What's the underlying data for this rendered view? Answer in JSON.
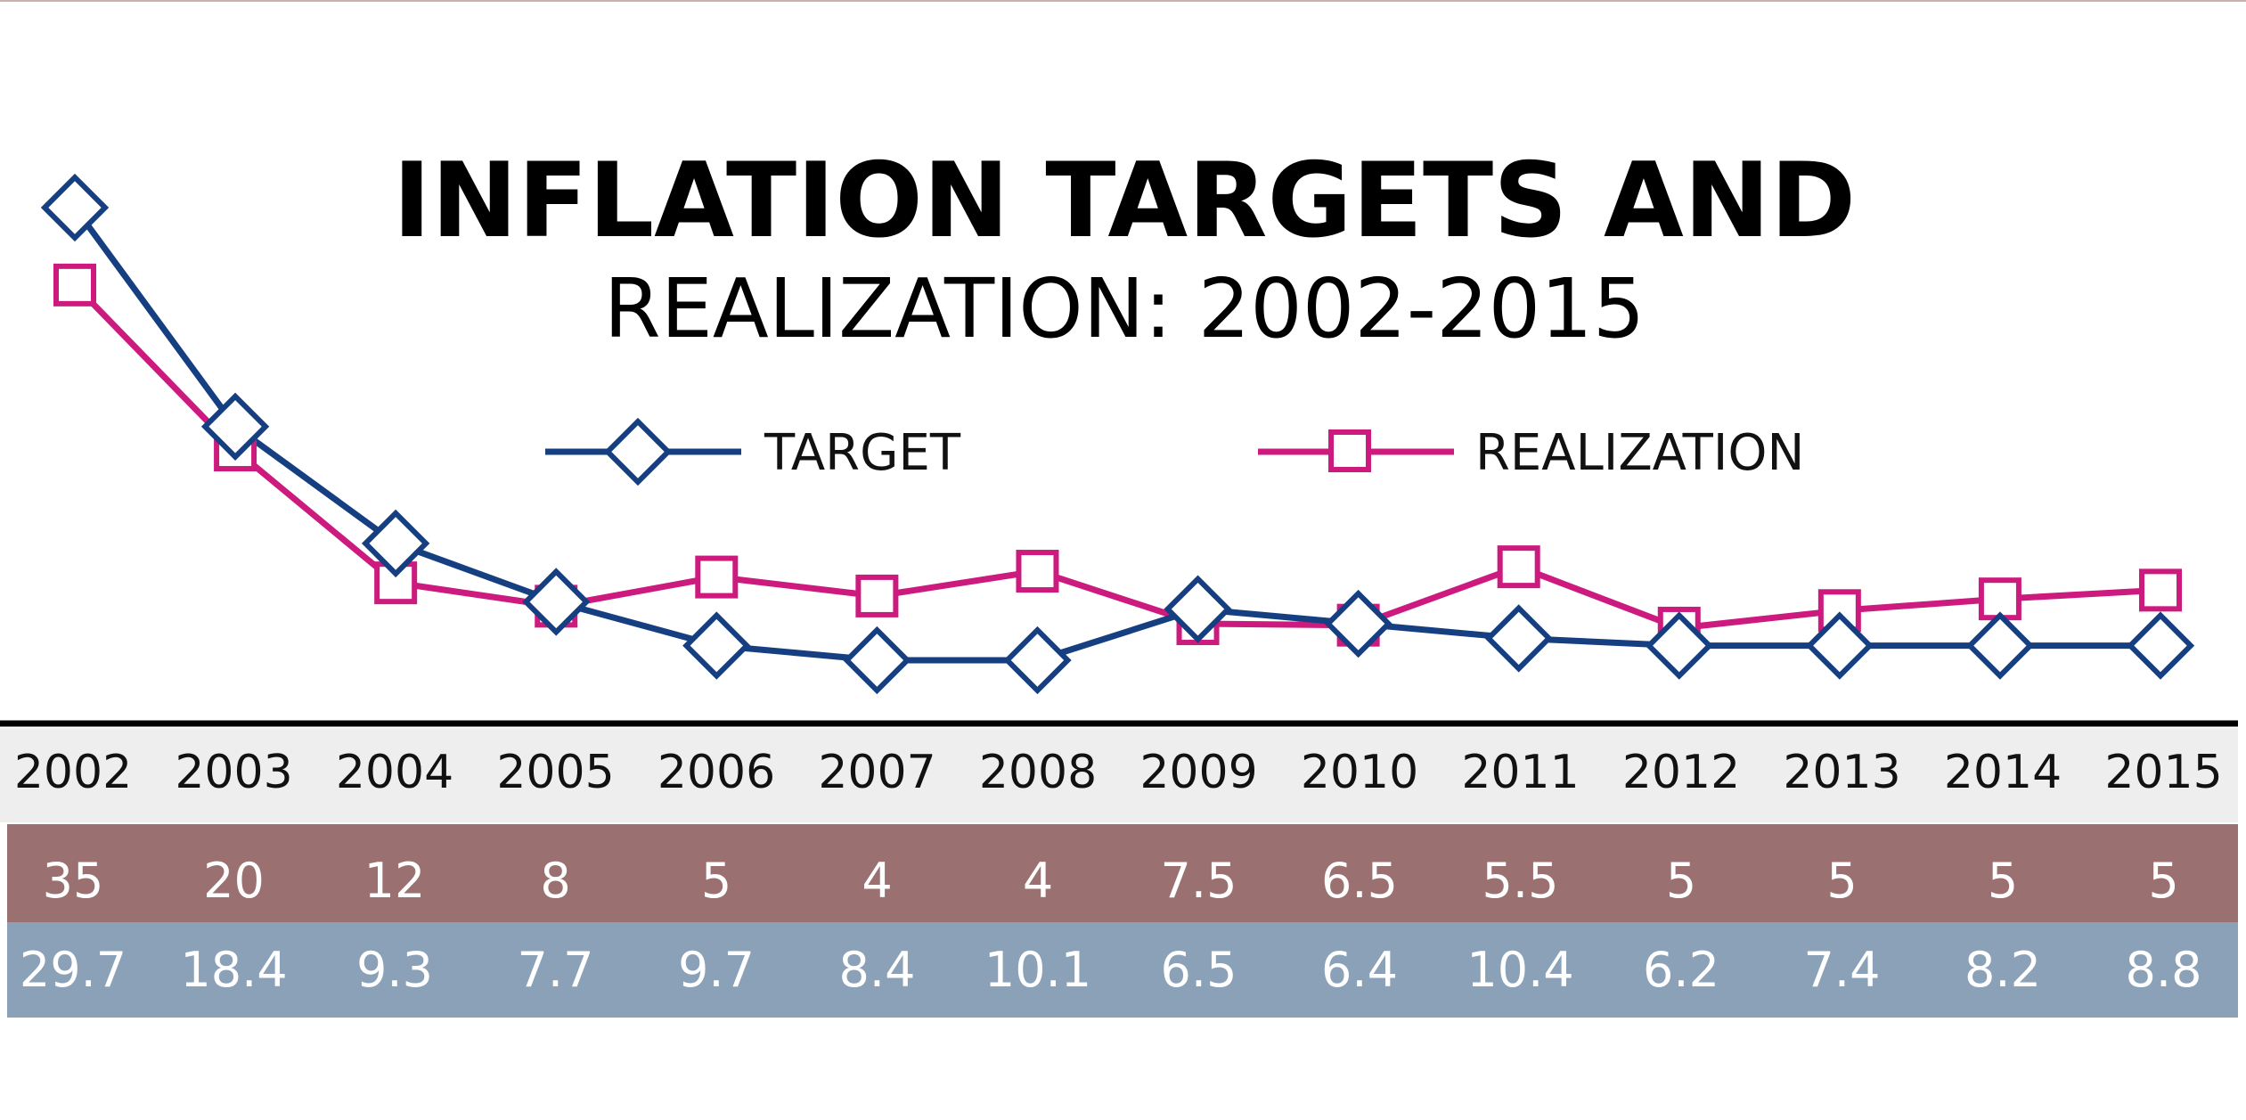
{
  "chart_data": {
    "type": "line",
    "title": "INFLATION TARGETS AND",
    "subtitle": "REALIZATION: 2002-2015",
    "legend_position": "top-center",
    "grid": false,
    "ylim": [
      0,
      40
    ],
    "x": [
      "2002",
      "2003",
      "2004",
      "2005",
      "2006",
      "2007",
      "2008",
      "2009",
      "2010",
      "2011",
      "2012",
      "2013",
      "2014",
      "2015"
    ],
    "series": [
      {
        "name": "TARGET",
        "marker": "diamond",
        "color": "#163f82",
        "values": [
          35,
          20,
          12,
          8,
          5,
          4,
          4,
          7.5,
          6.5,
          5.5,
          5,
          5,
          5,
          5
        ],
        "value_labels": [
          "35",
          "20",
          "12",
          "8",
          "5",
          "4",
          "4",
          "7.5",
          "6.5",
          "5.5",
          "5",
          "5",
          "5",
          "5"
        ]
      },
      {
        "name": "REALIZATION",
        "marker": "square",
        "color": "#cc1a7f",
        "values": [
          29.7,
          18.4,
          9.3,
          7.7,
          9.7,
          8.4,
          10.1,
          6.5,
          6.4,
          10.4,
          6.2,
          7.4,
          8.2,
          8.8
        ],
        "value_labels": [
          "29.7",
          "18.4",
          "9.3",
          "7.7",
          "9.7",
          "8.4",
          "10.1",
          "6.5",
          "6.4",
          "10.4",
          "6.2",
          "7.4",
          "8.2",
          "8.8"
        ]
      }
    ]
  },
  "colors": {
    "year_band": "#eeeeee",
    "target_band": "#9b7070",
    "realization_band": "#8aa1b8",
    "axis": "#000000"
  }
}
